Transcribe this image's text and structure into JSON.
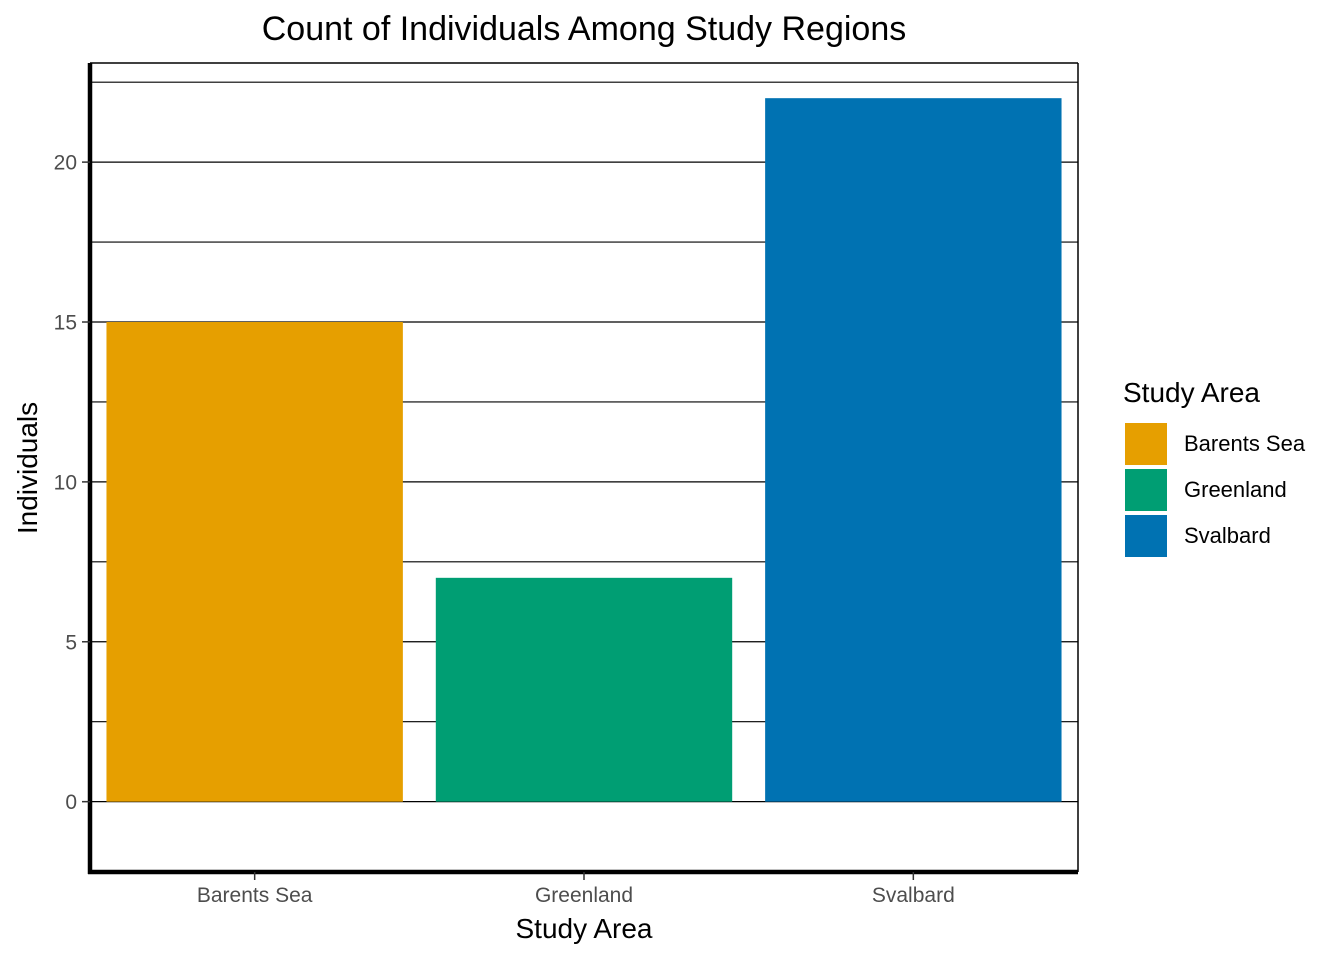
{
  "chart_data": {
    "type": "bar",
    "title": "Count of Individuals Among Study Regions",
    "xlabel": "Study Area",
    "ylabel": "Individuals",
    "categories": [
      "Barents Sea",
      "Greenland",
      "Svalbard"
    ],
    "values": [
      15,
      7,
      22
    ],
    "colors": [
      "#E69F00",
      "#009E73",
      "#0072B2"
    ],
    "ylim": [
      -2.2,
      23.1
    ],
    "yticks": [
      0,
      5,
      10,
      15,
      20
    ],
    "gridlines_y": [
      0,
      2.5,
      5,
      7.5,
      10,
      12.5,
      15,
      17.5,
      20,
      22.5
    ],
    "grid": true,
    "legend": {
      "title": "Study Area",
      "position": "right",
      "items": [
        "Barents Sea",
        "Greenland",
        "Svalbard"
      ]
    }
  }
}
